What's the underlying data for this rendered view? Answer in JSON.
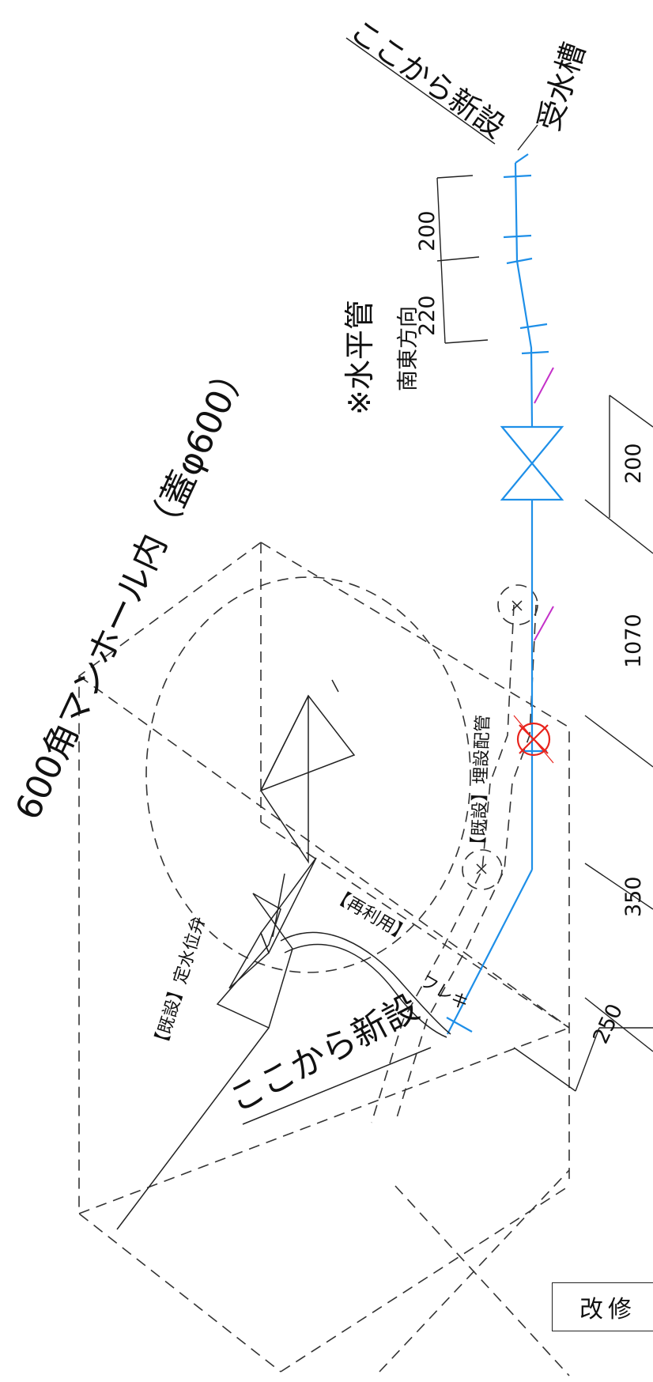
{
  "labels": {
    "new_from_here_top": "ここから新設",
    "receiving_tank": "受水槽",
    "horizontal_pipe": "※水平管",
    "south_east": "南東方向",
    "manhole": "600角マンホール内（蓋φ600）",
    "existing_buried": "【既設】埋設配管",
    "reuse": "【再利用】",
    "flex": "フレキ",
    "existing_valve": "【既設】定水位弁",
    "new_from_here_bottom": "ここから新設"
  },
  "dimensions_upper": [
    "200",
    "220"
  ],
  "dimensions_right": [
    "200",
    "1070",
    "350",
    "250"
  ],
  "stamp_text": "改修",
  "colors": {
    "pipe_new": "#1e8fe8",
    "removed_mark": "#e8231c",
    "marker": "#c430c9",
    "line": "#222222"
  }
}
